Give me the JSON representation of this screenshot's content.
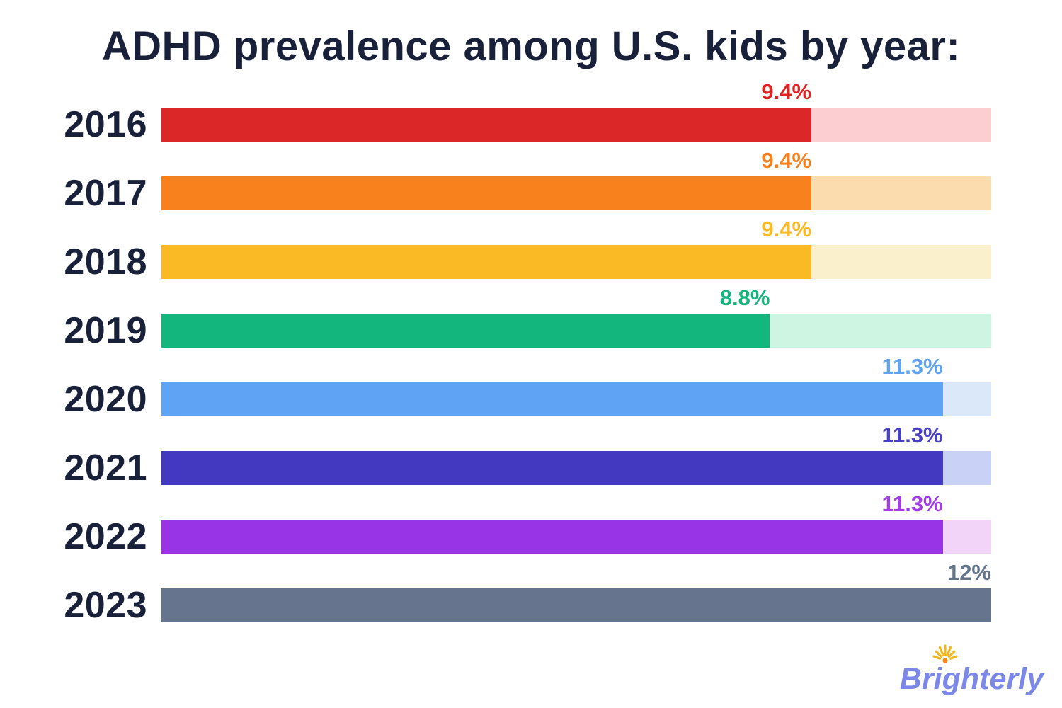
{
  "chart_data": {
    "type": "bar",
    "orientation": "horizontal",
    "title": "ADHD prevalence among U.S. kids by year:",
    "categories": [
      "2016",
      "2017",
      "2018",
      "2019",
      "2020",
      "2021",
      "2022",
      "2023"
    ],
    "values": [
      9.4,
      9.4,
      9.4,
      8.8,
      11.3,
      11.3,
      11.3,
      12
    ],
    "value_labels": [
      "9.4%",
      "9.4%",
      "9.4%",
      "8.8%",
      "11.3%",
      "11.3%",
      "11.3%",
      "12%"
    ],
    "xlim": [
      0,
      12
    ],
    "grid": "off",
    "legend": "none",
    "bar_colors": [
      "#DB2727",
      "#F8801D",
      "#F9BA25",
      "#13B77E",
      "#5EA3F4",
      "#4338C0",
      "#9833E6",
      "#67748E"
    ],
    "track_colors": [
      "#FCCDD1",
      "#FBDCAE",
      "#FAF0CB",
      "#CEF5E2",
      "#DBE8FA",
      "#C9D1F6",
      "#F2D4F9",
      "#67748E"
    ],
    "label_colors": [
      "#DF2222",
      "#F8801D",
      "#F9BA25",
      "#13B77E",
      "#5EA3F4",
      "#4940C8",
      "#A23BE8",
      "#64748B"
    ],
    "title_color": "#19213A",
    "year_label_color": "#19213A"
  },
  "footer": {
    "logo_text": "Brighterly",
    "logo_color": "#7C88E8",
    "sun_ray_color": "#F3B61B",
    "sun_center_color": "#F0861C"
  }
}
